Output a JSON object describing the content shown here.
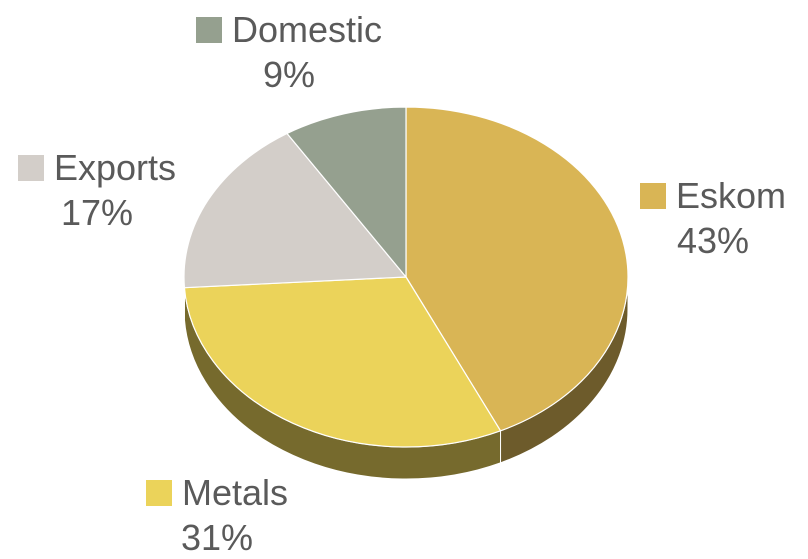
{
  "chart_data": {
    "type": "pie",
    "title": "",
    "slices": [
      {
        "name": "Eskom",
        "value": 43,
        "label": "43%",
        "color": "#d9b555"
      },
      {
        "name": "Metals",
        "value": 31,
        "label": "31%",
        "color": "#ebd35a"
      },
      {
        "name": "Exports",
        "value": 17,
        "label": "17%",
        "color": "#d3cec9"
      },
      {
        "name": "Domestic",
        "value": 9,
        "label": "9%",
        "color": "#95a08f"
      }
    ],
    "legend": "labels next to slices",
    "style": "3d-tilted"
  }
}
